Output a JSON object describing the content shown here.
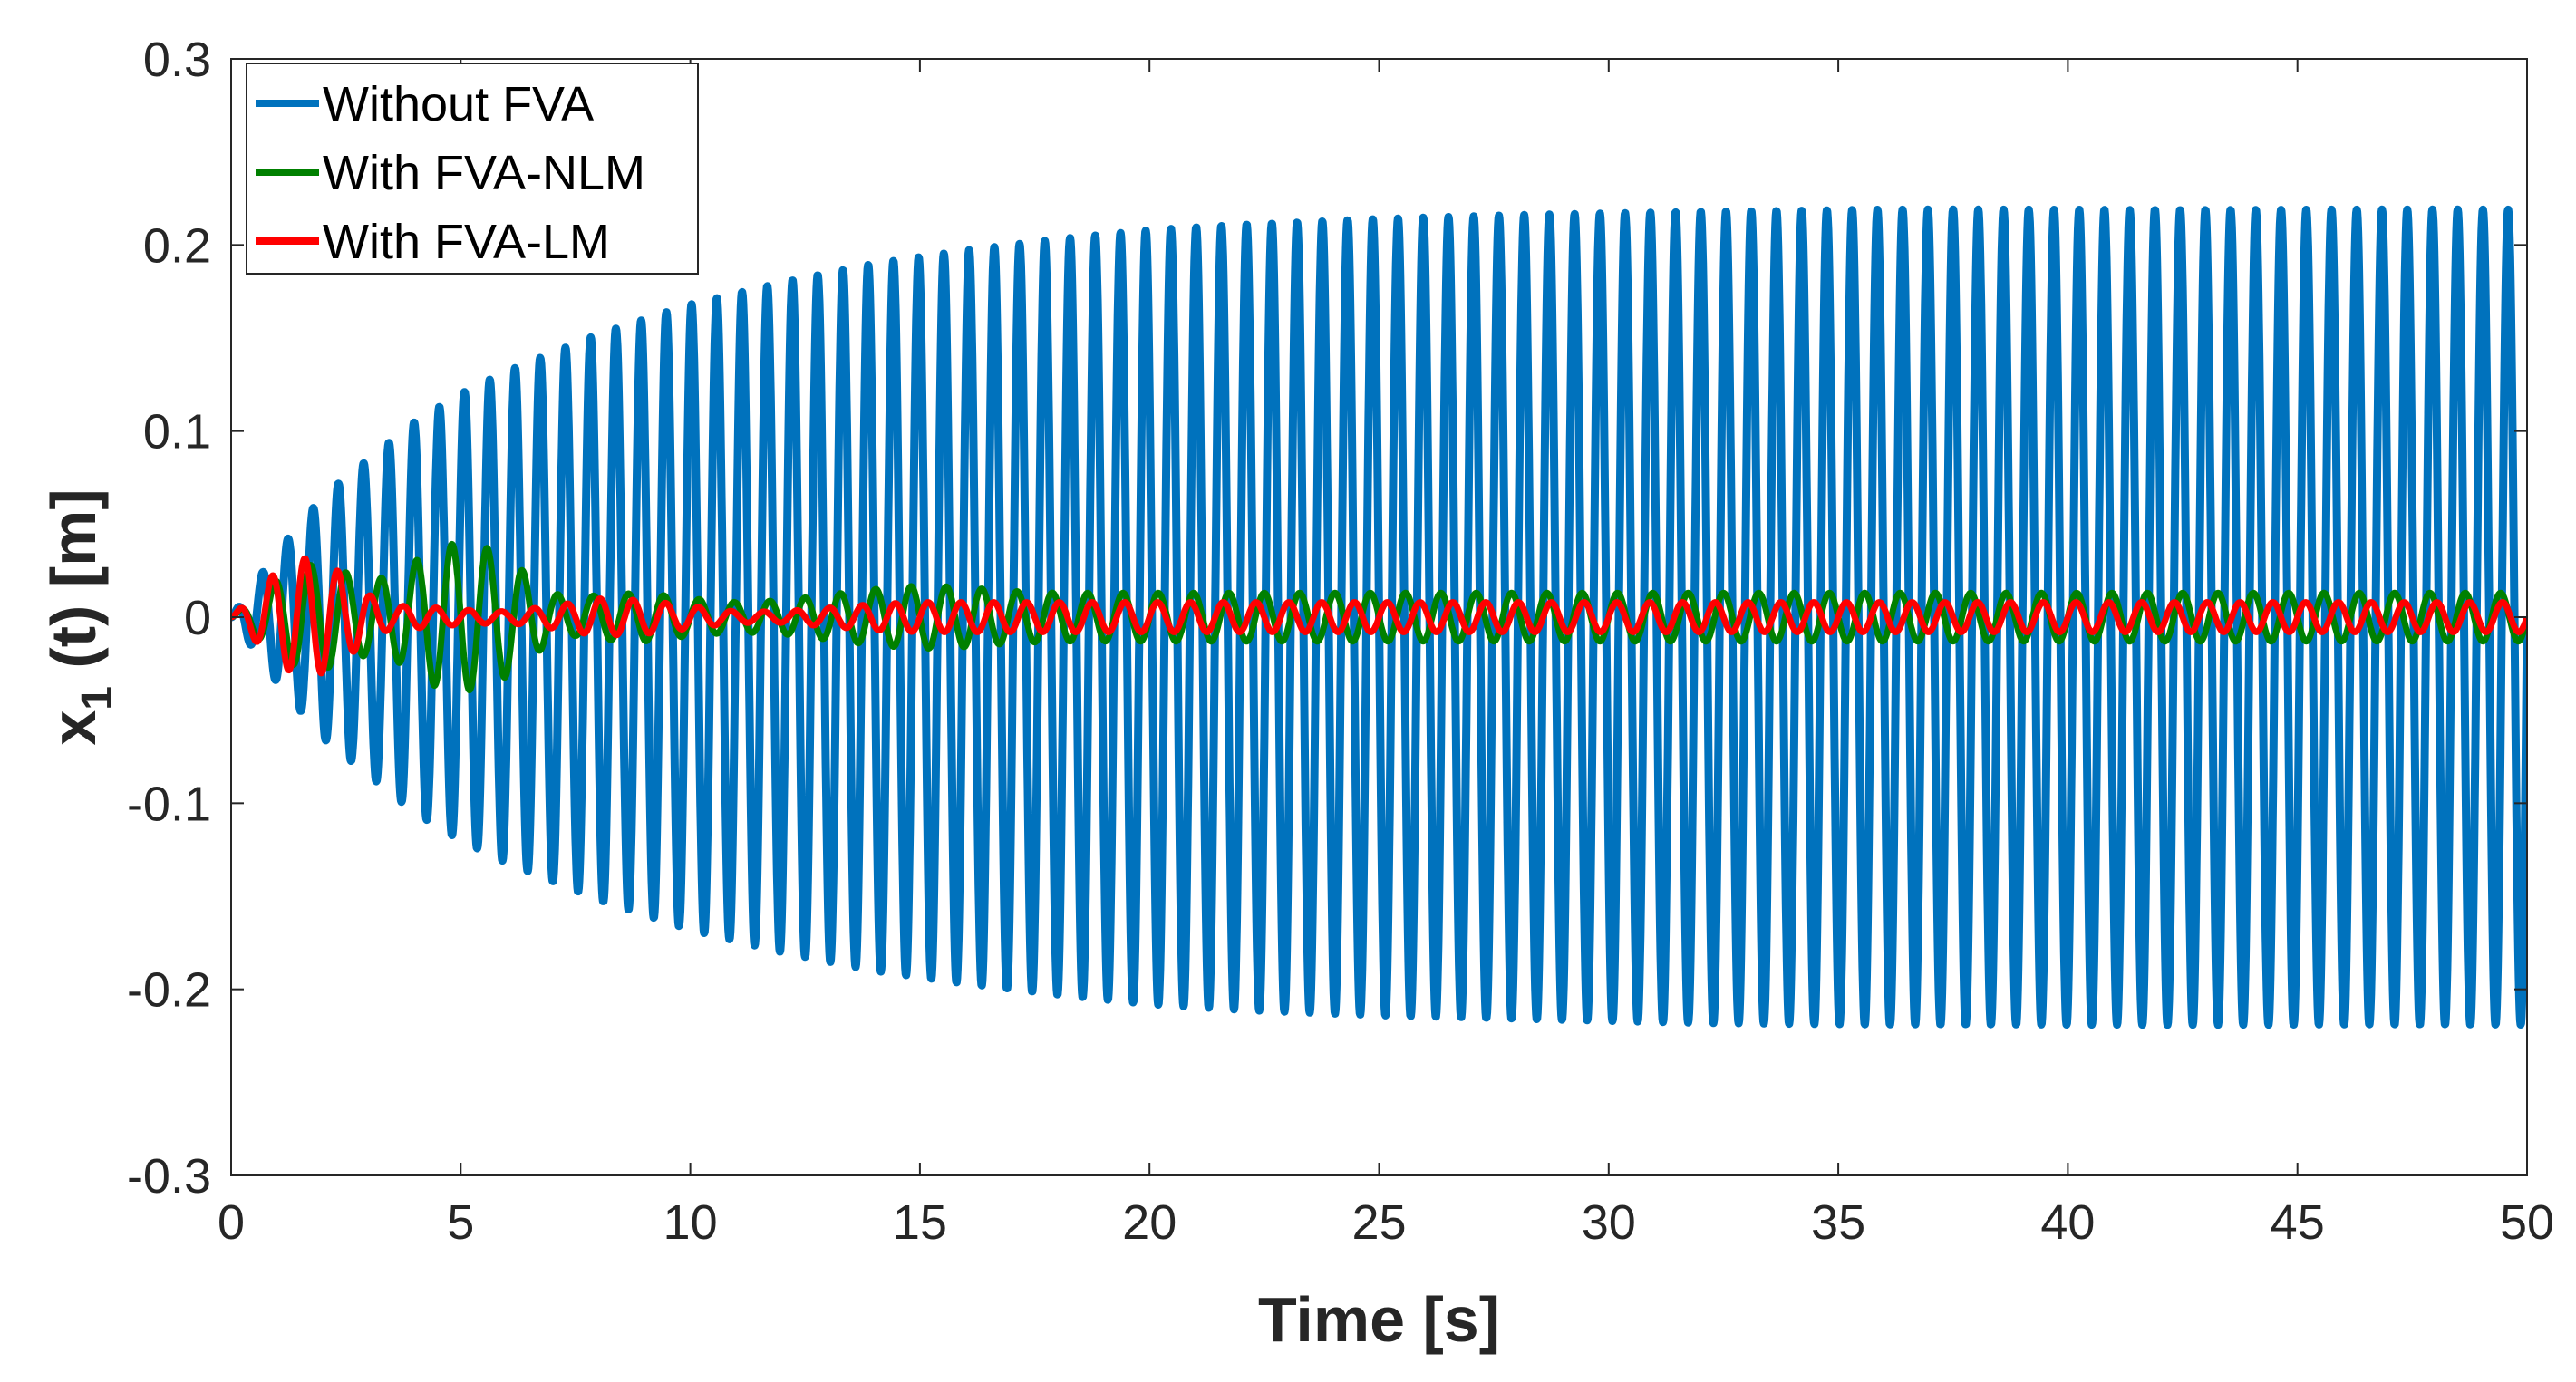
{
  "chart_data": {
    "type": "line",
    "title": "",
    "xlabel": "Time [s]",
    "ylabel_main": "x",
    "ylabel_sub": "1",
    "ylabel_rest": " (t) [m]",
    "xlim": [
      0,
      50
    ],
    "ylim": [
      -0.3,
      0.3
    ],
    "xticks": [
      0,
      5,
      10,
      15,
      20,
      25,
      30,
      35,
      40,
      45,
      50
    ],
    "xtick_labels": [
      "0",
      "5",
      "10",
      "15",
      "20",
      "25",
      "30",
      "35",
      "40",
      "45",
      "50"
    ],
    "yticks": [
      -0.3,
      -0.2,
      -0.1,
      0,
      0.1,
      0.2,
      0.3
    ],
    "ytick_labels": [
      "-0.3",
      "-0.2",
      "-0.1",
      "0",
      "0.1",
      "0.2",
      "0.3"
    ],
    "grid": false,
    "legend_position": "top-left",
    "sample_step": 0.01,
    "series": [
      {
        "name": "Without FVA",
        "color": "#0072bd",
        "frequency_hz": 1.82,
        "amplitude_envelope": {
          "t": [
            0,
            1,
            2,
            3,
            4,
            5,
            6,
            8,
            10,
            12,
            14,
            16,
            18,
            20,
            22,
            25,
            28,
            32,
            36,
            40,
            45,
            50
          ],
          "a": [
            0,
            0.035,
            0.065,
            0.085,
            0.105,
            0.12,
            0.132,
            0.152,
            0.168,
            0.18,
            0.19,
            0.197,
            0.203,
            0.208,
            0.211,
            0.214,
            0.216,
            0.218,
            0.219,
            0.219,
            0.219,
            0.219
          ]
        }
      },
      {
        "name": "With FVA-NLM",
        "color": "#008000",
        "frequency_hz": 1.3,
        "amplitude_envelope": {
          "t": [
            0,
            0.5,
            1,
            1.5,
            2,
            2.5,
            3,
            3.5,
            4,
            4.5,
            5,
            5.5,
            6,
            6.5,
            7,
            7.5,
            8,
            9,
            10,
            11,
            12,
            13,
            14,
            15,
            16,
            17,
            18,
            20,
            25,
            30,
            35,
            40,
            45,
            50
          ],
          "a": [
            0,
            0.01,
            0.02,
            0.028,
            0.028,
            0.024,
            0.02,
            0.022,
            0.03,
            0.038,
            0.04,
            0.038,
            0.032,
            0.022,
            0.013,
            0.01,
            0.012,
            0.013,
            0.01,
            0.008,
            0.009,
            0.012,
            0.015,
            0.017,
            0.016,
            0.014,
            0.013,
            0.013,
            0.013,
            0.013,
            0.013,
            0.013,
            0.013,
            0.013
          ]
        }
      },
      {
        "name": "With FVA-LM",
        "color": "#ff0000",
        "frequency_hz": 1.4,
        "amplitude_envelope": {
          "t": [
            0,
            0.5,
            1,
            1.5,
            2,
            2.5,
            3,
            3.5,
            4,
            5,
            6,
            7,
            8,
            9,
            10,
            11,
            12,
            13,
            14,
            15,
            16,
            18,
            20,
            25,
            30,
            35,
            40,
            45,
            50
          ],
          "a": [
            0,
            0.012,
            0.025,
            0.032,
            0.03,
            0.022,
            0.012,
            0.006,
            0.006,
            0.004,
            0.003,
            0.006,
            0.01,
            0.009,
            0.006,
            0.003,
            0.003,
            0.005,
            0.007,
            0.008,
            0.008,
            0.008,
            0.008,
            0.008,
            0.008,
            0.008,
            0.008,
            0.008,
            0.008
          ]
        }
      }
    ]
  }
}
